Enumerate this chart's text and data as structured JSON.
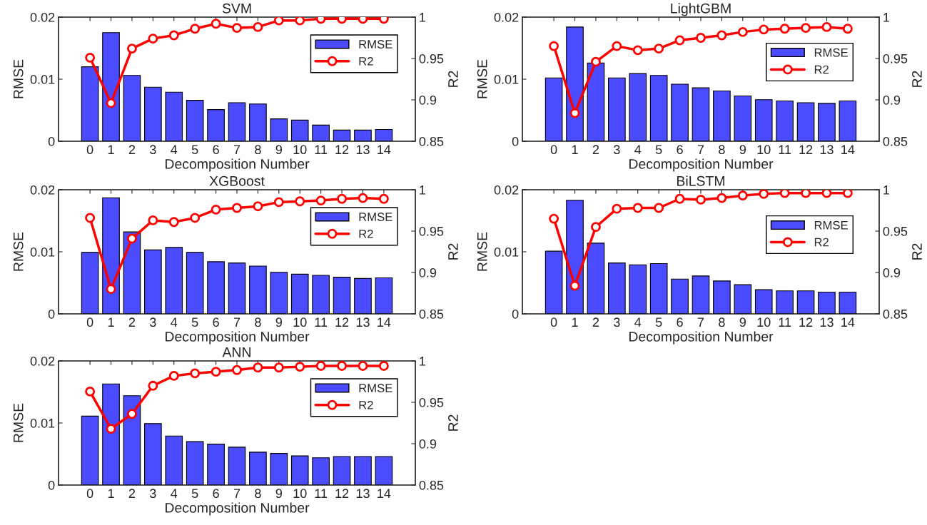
{
  "chart_data": [
    {
      "type": "bar",
      "title": "SVM",
      "xlabel": "Decomposition Number",
      "ylabel": "RMSE",
      "y2label": "R2",
      "legend": "top right",
      "marker": "circle",
      "categories": [
        "0",
        "1",
        "2",
        "3",
        "4",
        "5",
        "6",
        "7",
        "8",
        "9",
        "10",
        "11",
        "12",
        "13",
        "14"
      ],
      "ylim": [
        0,
        0.02
      ],
      "yticks": [
        0,
        0.01,
        0.02
      ],
      "y2lim": [
        0.85,
        1
      ],
      "y2ticks": [
        0.85,
        0.9,
        0.95,
        1
      ],
      "series": [
        {
          "name": "RMSE",
          "color": "#4b4bff",
          "values": [
            0.012,
            0.0175,
            0.0106,
            0.0087,
            0.0079,
            0.0066,
            0.0051,
            0.0062,
            0.006,
            0.0036,
            0.0034,
            0.0026,
            0.0018,
            0.0018,
            0.0019
          ]
        },
        {
          "name": "R2",
          "type": "line",
          "axis": "y2",
          "color": "#ff0000",
          "values": [
            0.951,
            0.896,
            0.962,
            0.974,
            0.978,
            0.986,
            0.992,
            0.987,
            0.988,
            0.996,
            0.996,
            0.998,
            0.998,
            0.998,
            0.998
          ]
        }
      ]
    },
    {
      "type": "bar",
      "title": "LightGBM",
      "xlabel": "Decomposition Number",
      "ylabel": "RMSE",
      "y2label": "R2",
      "legend": "top right",
      "marker": "circle",
      "categories": [
        "0",
        "1",
        "2",
        "3",
        "4",
        "5",
        "6",
        "7",
        "8",
        "9",
        "10",
        "11",
        "12",
        "13",
        "14"
      ],
      "ylim": [
        0,
        0.02
      ],
      "yticks": [
        0,
        0.01,
        0.02
      ],
      "y2lim": [
        0.85,
        1
      ],
      "y2ticks": [
        0.85,
        0.9,
        0.95,
        1
      ],
      "series": [
        {
          "name": "RMSE",
          "color": "#4b4bff",
          "values": [
            0.0102,
            0.0184,
            0.0126,
            0.0102,
            0.0109,
            0.0106,
            0.0092,
            0.0086,
            0.0081,
            0.0073,
            0.0067,
            0.0065,
            0.0062,
            0.0061,
            0.0065
          ]
        },
        {
          "name": "R2",
          "type": "line",
          "axis": "y2",
          "color": "#ff0000",
          "values": [
            0.965,
            0.884,
            0.946,
            0.965,
            0.96,
            0.962,
            0.972,
            0.975,
            0.978,
            0.982,
            0.985,
            0.986,
            0.987,
            0.988,
            0.986
          ]
        }
      ]
    },
    {
      "type": "bar",
      "title": "XGBoost",
      "xlabel": "Decomposition Number",
      "ylabel": "RMSE",
      "y2label": "R2",
      "legend": "top right",
      "marker": "circle",
      "categories": [
        "0",
        "1",
        "2",
        "3",
        "4",
        "5",
        "6",
        "7",
        "8",
        "9",
        "10",
        "11",
        "12",
        "13",
        "14"
      ],
      "ylim": [
        0,
        0.02
      ],
      "yticks": [
        0,
        0.01,
        0.02
      ],
      "y2lim": [
        0.85,
        1
      ],
      "y2ticks": [
        0.85,
        0.9,
        0.95,
        1
      ],
      "series": [
        {
          "name": "RMSE",
          "color": "#4b4bff",
          "values": [
            0.0099,
            0.0187,
            0.0132,
            0.0103,
            0.0107,
            0.0099,
            0.0084,
            0.0082,
            0.0077,
            0.0067,
            0.0064,
            0.0062,
            0.0059,
            0.0057,
            0.0058
          ]
        },
        {
          "name": "R2",
          "type": "line",
          "axis": "y2",
          "color": "#ff0000",
          "values": [
            0.966,
            0.88,
            0.941,
            0.963,
            0.961,
            0.966,
            0.976,
            0.978,
            0.98,
            0.985,
            0.986,
            0.987,
            0.989,
            0.99,
            0.989
          ]
        }
      ]
    },
    {
      "type": "bar",
      "title": "BiLSTM",
      "xlabel": "Decomposition Number",
      "ylabel": "RMSE",
      "y2label": "R2",
      "legend": "top right",
      "marker": "circle",
      "categories": [
        "0",
        "1",
        "2",
        "3",
        "4",
        "5",
        "6",
        "7",
        "8",
        "9",
        "10",
        "11",
        "12",
        "13",
        "14"
      ],
      "ylim": [
        0,
        0.02
      ],
      "yticks": [
        0,
        0.01,
        0.02
      ],
      "y2lim": [
        0.85,
        1
      ],
      "y2ticks": [
        0.85,
        0.9,
        0.95,
        1
      ],
      "series": [
        {
          "name": "RMSE",
          "color": "#4b4bff",
          "values": [
            0.0101,
            0.0183,
            0.0114,
            0.0082,
            0.0079,
            0.0081,
            0.0056,
            0.0061,
            0.0053,
            0.0047,
            0.0039,
            0.0037,
            0.0037,
            0.0035,
            0.0035
          ]
        },
        {
          "name": "R2",
          "type": "line",
          "axis": "y2",
          "color": "#ff0000",
          "values": [
            0.965,
            0.884,
            0.955,
            0.977,
            0.978,
            0.978,
            0.989,
            0.988,
            0.99,
            0.993,
            0.995,
            0.996,
            0.996,
            0.996,
            0.996
          ]
        }
      ]
    },
    {
      "type": "bar",
      "title": "ANN",
      "xlabel": "Decomposition Number",
      "ylabel": "RMSE",
      "y2label": "R2",
      "legend": "top right",
      "marker": "circle",
      "categories": [
        "0",
        "1",
        "2",
        "3",
        "4",
        "5",
        "6",
        "7",
        "8",
        "9",
        "10",
        "11",
        "12",
        "13",
        "14"
      ],
      "ylim": [
        0,
        0.02
      ],
      "yticks": [
        0,
        0.01,
        0.02
      ],
      "y2lim": [
        0.85,
        1
      ],
      "y2ticks": [
        0.85,
        0.9,
        0.95,
        1
      ],
      "series": [
        {
          "name": "RMSE",
          "color": "#4b4bff",
          "values": [
            0.0111,
            0.0163,
            0.0144,
            0.0099,
            0.0079,
            0.007,
            0.0066,
            0.0061,
            0.0053,
            0.0051,
            0.0047,
            0.0044,
            0.0046,
            0.0046,
            0.0046
          ]
        },
        {
          "name": "R2",
          "type": "line",
          "axis": "y2",
          "color": "#ff0000",
          "values": [
            0.963,
            0.918,
            0.936,
            0.97,
            0.982,
            0.985,
            0.987,
            0.989,
            0.992,
            0.992,
            0.993,
            0.994,
            0.994,
            0.994,
            0.994
          ]
        }
      ]
    }
  ]
}
